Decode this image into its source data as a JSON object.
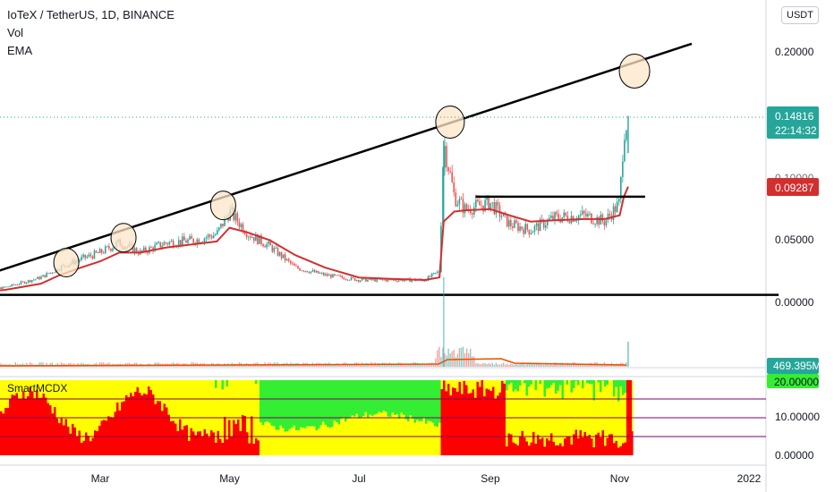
{
  "legend": {
    "title": "IoTeX / TetherUS, 1D, BINANCE",
    "vol": "Vol",
    "ema": "EMA"
  },
  "currency": "USDT",
  "colors": {
    "up": "#26a69a",
    "down": "#ef5350",
    "ema": "#d32f2f",
    "ema_vol": "#e65100",
    "price_tag": "#26a69a",
    "ema_tag": "#d32f2f",
    "ind_red": "#ff0000",
    "ind_yellow": "#ffff00",
    "ind_green": "#33ee33",
    "ind_line": "#800060",
    "circle_fill": "#fde6c8"
  },
  "chart_data": [
    {
      "type": "line",
      "title": "IoTeX / TetherUS, 1D, BINANCE",
      "x_ticks": [
        "Mar",
        "May",
        "Jul",
        "Sep",
        "Nov",
        "2022"
      ],
      "y_ticks": [
        "0.20000",
        "0.05000",
        "0.00000"
      ],
      "ylim": [
        0,
        0.2
      ],
      "last_price": "0.14816",
      "countdown": "22:14:32",
      "ema_value": "0.09287",
      "points_dates": [
        "2021-01-01",
        "2021-01-15",
        "2021-02-01",
        "2021-02-10",
        "2021-02-20",
        "2021-03-01",
        "2021-03-10",
        "2021-03-20",
        "2021-04-01",
        "2021-04-15",
        "2021-04-25",
        "2021-05-01",
        "2021-05-10",
        "2021-05-20",
        "2021-06-01",
        "2021-06-15",
        "2021-07-01",
        "2021-07-15",
        "2021-08-01",
        "2021-08-08",
        "2021-08-10",
        "2021-08-15",
        "2021-08-20",
        "2021-09-01",
        "2021-09-10",
        "2021-09-20",
        "2021-10-01",
        "2021-10-15",
        "2021-10-25",
        "2021-11-01",
        "2021-11-03",
        "2021-11-05"
      ],
      "price": [
        0.009,
        0.012,
        0.02,
        0.028,
        0.035,
        0.04,
        0.048,
        0.04,
        0.048,
        0.05,
        0.055,
        0.073,
        0.055,
        0.045,
        0.028,
        0.022,
        0.018,
        0.018,
        0.018,
        0.025,
        0.13,
        0.085,
        0.075,
        0.08,
        0.063,
        0.058,
        0.068,
        0.07,
        0.065,
        0.08,
        0.14,
        0.148
      ],
      "ema": [
        0.008,
        0.01,
        0.015,
        0.022,
        0.028,
        0.033,
        0.04,
        0.04,
        0.044,
        0.047,
        0.049,
        0.06,
        0.056,
        0.05,
        0.038,
        0.028,
        0.02,
        0.019,
        0.018,
        0.02,
        0.065,
        0.073,
        0.074,
        0.075,
        0.07,
        0.065,
        0.066,
        0.067,
        0.067,
        0.07,
        0.085,
        0.093
      ],
      "trendlines": [
        {
          "from_date": "2021-01-08",
          "from": 0.023,
          "to_date": "2021-12-05",
          "to": 0.208
        },
        {
          "from_date": "2020-12-31",
          "from": 0.006,
          "to_date": "2022-01-15",
          "to": 0.006
        },
        {
          "from_date": "2021-08-25",
          "from": 0.085,
          "to_date": "2021-11-13",
          "to": 0.085
        }
      ],
      "circles_dates": [
        "2021-02-13",
        "2021-03-12",
        "2021-04-28",
        "2021-08-13",
        "2021-11-08"
      ],
      "circles_values": [
        0.032,
        0.052,
        0.078,
        0.145,
        0.186
      ]
    },
    {
      "type": "bar",
      "name": "Vol",
      "last_value": "469.395M",
      "ema_color_hint": "orange"
    },
    {
      "type": "area",
      "name": "SmartMCDX",
      "y_ticks": [
        "20.00000",
        "10.00000",
        "0.00000"
      ],
      "ylim": [
        0,
        20
      ],
      "levels": [
        15,
        10,
        5
      ],
      "last_value": "20.00000"
    }
  ]
}
